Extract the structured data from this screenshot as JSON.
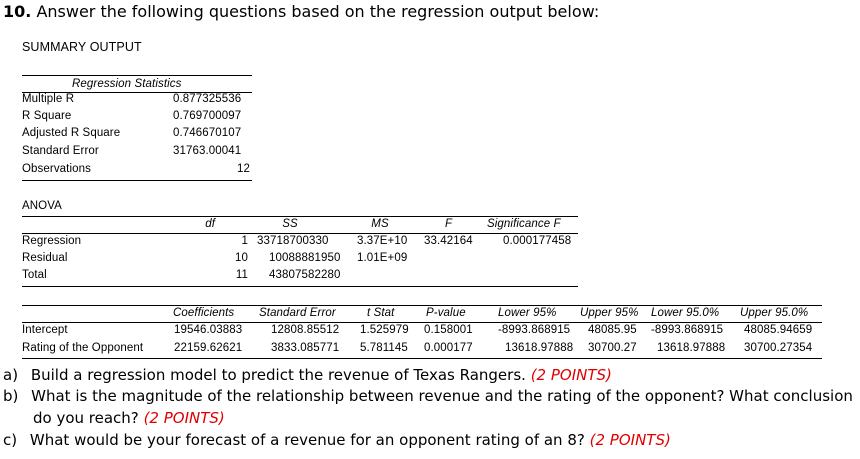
{
  "question": {
    "number": "10.",
    "text": "Answer the following questions based on the regression output below:"
  },
  "summary_title": "SUMMARY OUTPUT",
  "regression_statistics": {
    "title": "Regression Statistics",
    "rows": [
      {
        "label": "Multiple R",
        "value": "0.877325536"
      },
      {
        "label": "R Square",
        "value": "0.769700097"
      },
      {
        "label": "Adjusted R Square",
        "value": "0.746670107"
      },
      {
        "label": "Standard Error",
        "value": "31763.00041"
      },
      {
        "label": "Observations",
        "value": "12"
      }
    ]
  },
  "anova": {
    "title": "ANOVA",
    "headers": {
      "df": "df",
      "ss": "SS",
      "ms": "MS",
      "f": "F",
      "sig": "Significance F"
    },
    "rows": [
      {
        "label": "Regression",
        "df": "1",
        "ss": "33718700330",
        "ms": "3.37E+10",
        "f": "33.42164",
        "sig": "0.000177458"
      },
      {
        "label": "Residual",
        "df": "10",
        "ss": "10088881950",
        "ms": "1.01E+09",
        "f": "",
        "sig": ""
      },
      {
        "label": "Total",
        "df": "11",
        "ss": "43807582280",
        "ms": "",
        "f": "",
        "sig": ""
      }
    ]
  },
  "coefficients": {
    "headers": [
      "Coefficients",
      "Standard Error",
      "t Stat",
      "P-value",
      "Lower 95%",
      "Upper 95%",
      "Lower 95.0%",
      "Upper 95.0%"
    ],
    "rows": [
      {
        "label": "Intercept",
        "values": [
          "19546.03883",
          "12808.85512",
          "1.525979",
          "0.158001",
          "-8993.868915",
          "48085.95",
          "-8993.868915",
          "48085.94659"
        ]
      },
      {
        "label": "Rating of the Opponent",
        "values": [
          "22159.62621",
          "3833.085771",
          "5.781145",
          "0.000177",
          "13618.97888",
          "30700.27",
          "13618.97888",
          "30700.27354"
        ]
      }
    ]
  },
  "questions": [
    {
      "letter": "a)",
      "text": "Build a regression model to predict the revenue of Texas Rangers.",
      "points": "(2 POINTS)"
    },
    {
      "letter": "b)",
      "text": "What is the magnitude of the relationship between revenue and the rating of the opponent? What conclusion",
      "text2": "do you reach?",
      "points": "(2 POINTS)"
    },
    {
      "letter": "c)",
      "text": "What would be your forecast of a revenue for an opponent rating of an 8?",
      "points": "(2 POINTS)"
    }
  ]
}
